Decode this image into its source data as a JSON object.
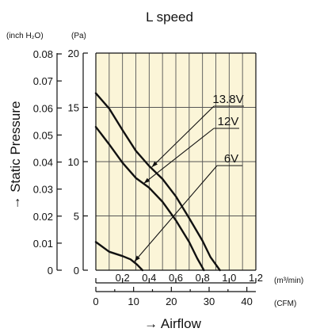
{
  "chart_data": {
    "type": "line",
    "title": "L speed",
    "xlabel": "→ Airflow",
    "ylabel": "→ Static Pressure",
    "x_unit_primary": "(m³/min)",
    "x_unit_secondary": "(CFM)",
    "y_unit_primary": "(Pa)",
    "y_unit_secondary": "(inch H₂O)",
    "xlim": [
      0,
      1.2
    ],
    "ylim": [
      0,
      20
    ],
    "x_ticks": [
      0.2,
      0.4,
      0.6,
      0.8,
      1.0,
      1.2
    ],
    "x_tick_labels": [
      "0.2",
      "0.4",
      "0.6",
      "0.8",
      "1.0",
      "1.2"
    ],
    "x2_ticks": [
      0,
      10,
      20,
      30,
      40
    ],
    "x2_tick_labels": [
      "0",
      "10",
      "20",
      "30",
      "40"
    ],
    "x2_lim": [
      0,
      42.38
    ],
    "y_ticks": [
      0,
      5,
      10,
      15,
      20
    ],
    "y_tick_labels": [
      "0",
      "5",
      "10",
      "15",
      "20"
    ],
    "y2_ticks": [
      0,
      0.01,
      0.02,
      0.03,
      0.04,
      0.05,
      0.06,
      0.07,
      0.08
    ],
    "y2_tick_labels": [
      "0",
      "0.01",
      "0.02",
      "0.03",
      "0.04",
      "0.05",
      "0.06",
      "0.07",
      "0.08"
    ],
    "y2_lim": [
      0,
      0.0803
    ],
    "grid": true,
    "background_color": "#fbf5d8",
    "series": [
      {
        "name": "13.8V",
        "x": [
          0,
          0.1,
          0.2,
          0.3,
          0.4,
          0.5,
          0.6,
          0.7,
          0.8,
          0.86,
          0.93
        ],
        "y": [
          16.3,
          14.9,
          12.9,
          11.0,
          9.6,
          8.4,
          6.8,
          4.8,
          2.7,
          1.2,
          0
        ]
      },
      {
        "name": "12V",
        "x": [
          0,
          0.1,
          0.2,
          0.3,
          0.4,
          0.5,
          0.6,
          0.7,
          0.76,
          0.81
        ],
        "y": [
          13.2,
          11.6,
          9.9,
          8.5,
          7.6,
          6.3,
          4.6,
          2.6,
          1.1,
          0
        ]
      },
      {
        "name": "6V",
        "x": [
          0,
          0.1,
          0.2,
          0.26,
          0.31,
          0.35
        ],
        "y": [
          2.6,
          1.7,
          1.3,
          1.0,
          0.5,
          0
        ]
      }
    ]
  }
}
